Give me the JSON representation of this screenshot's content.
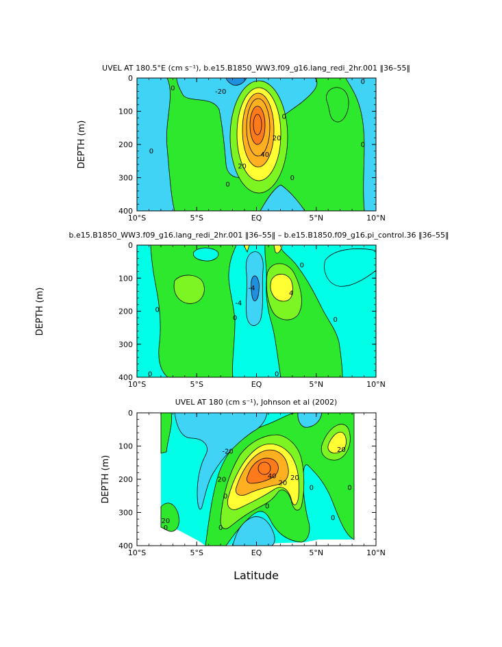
{
  "colors": {
    "dark_blue": "#1f8fe0",
    "blue": "#3fd3f5",
    "cyan": "#00ffe6",
    "green": "#2ee82e",
    "light_green": "#7cf522",
    "yellow": "#ffff33",
    "orange": "#ffb020",
    "red_orange": "#ff7a1a",
    "white": "#ffffff"
  },
  "xlabel": "Latitude",
  "chart_data": [
    {
      "type": "heatmap",
      "subtype": "filled-contour",
      "title": "UVEL AT 180.5°E (cm s⁻¹), b.e15.B1850_WW3.f09_g16.lang_redi_2hr.001 ‖36–55‖",
      "xlabel": "",
      "ylabel": "DEPTH (m)",
      "xlim": [
        -10,
        10
      ],
      "ylim": [
        400,
        0
      ],
      "xticks": [
        "10°S",
        "5°S",
        "EQ",
        "5°N",
        "10°N"
      ],
      "yticks": [
        "0",
        "100",
        "200",
        "300",
        "400"
      ],
      "contour_labels": [
        {
          "lat": -7,
          "depth": 30,
          "text": "0"
        },
        {
          "lat": -3,
          "depth": 40,
          "text": "-20"
        },
        {
          "lat": 2.3,
          "depth": 115,
          "text": "0"
        },
        {
          "lat": 1.7,
          "depth": 180,
          "text": "20"
        },
        {
          "lat": 0.7,
          "depth": 230,
          "text": "40"
        },
        {
          "lat": -1.2,
          "depth": 265,
          "text": "20"
        },
        {
          "lat": -8.8,
          "depth": 220,
          "text": "0"
        },
        {
          "lat": -2.4,
          "depth": 320,
          "text": "0"
        },
        {
          "lat": 3,
          "depth": 300,
          "text": "0"
        },
        {
          "lat": 8.9,
          "depth": 200,
          "text": "0"
        },
        {
          "lat": 8.9,
          "depth": 10,
          "text": "0"
        }
      ]
    },
    {
      "type": "heatmap",
      "subtype": "filled-contour",
      "title": "b.e15.B1850_WW3.f09_g16.lang_redi_2hr.001 ‖36–55‖ – b.e15.B1850.f09_g16.pi_control.36 ‖36–55‖",
      "xlabel": "",
      "ylabel": "DEPTH (m)",
      "xlim": [
        -10,
        10
      ],
      "ylim": [
        400,
        0
      ],
      "xticks": [
        "10°S",
        "5°S",
        "EQ",
        "5°N",
        "10°N"
      ],
      "yticks": [
        "0",
        "100",
        "200",
        "300",
        "400"
      ],
      "contour_labels": [
        {
          "lat": -8.3,
          "depth": 195,
          "text": "0"
        },
        {
          "lat": -1.8,
          "depth": 220,
          "text": "0"
        },
        {
          "lat": -0.4,
          "depth": 130,
          "text": "-4"
        },
        {
          "lat": -1.5,
          "depth": 175,
          "text": "-4"
        },
        {
          "lat": 2.9,
          "depth": 145,
          "text": "4"
        },
        {
          "lat": 3.8,
          "depth": 60,
          "text": "0"
        },
        {
          "lat": 6.6,
          "depth": 225,
          "text": "0"
        },
        {
          "lat": -8.9,
          "depth": 390,
          "text": "0"
        },
        {
          "lat": 1.7,
          "depth": 390,
          "text": "0"
        }
      ]
    },
    {
      "type": "heatmap",
      "subtype": "filled-contour",
      "title": "UVEL AT 180 (cm s⁻¹), Johnson et al (2002)",
      "xlabel": "Latitude",
      "ylabel": "DEPTH (m)",
      "xlim": [
        -10,
        10
      ],
      "ylim": [
        400,
        0
      ],
      "xticks": [
        "10°S",
        "5°S",
        "EQ",
        "5°N",
        "10°N"
      ],
      "yticks": [
        "0",
        "100",
        "200",
        "300",
        "400"
      ],
      "data_extent_lat": [
        -8,
        8
      ],
      "contour_labels": [
        {
          "lat": -2.4,
          "depth": 115,
          "text": "-20"
        },
        {
          "lat": 1.3,
          "depth": 190,
          "text": "40"
        },
        {
          "lat": 3.2,
          "depth": 195,
          "text": "20"
        },
        {
          "lat": 2.2,
          "depth": 210,
          "text": "20"
        },
        {
          "lat": -2.9,
          "depth": 200,
          "text": "20"
        },
        {
          "lat": -2.6,
          "depth": 250,
          "text": "0"
        },
        {
          "lat": 7.1,
          "depth": 110,
          "text": "20"
        },
        {
          "lat": 4.6,
          "depth": 225,
          "text": "0"
        },
        {
          "lat": 7.8,
          "depth": 225,
          "text": "0"
        },
        {
          "lat": 6.4,
          "depth": 315,
          "text": "0"
        },
        {
          "lat": 0.9,
          "depth": 280,
          "text": "0"
        },
        {
          "lat": -3,
          "depth": 345,
          "text": "0"
        },
        {
          "lat": -7.6,
          "depth": 345,
          "text": "0"
        },
        {
          "lat": -7.6,
          "depth": 325,
          "text": "20"
        }
      ]
    }
  ]
}
